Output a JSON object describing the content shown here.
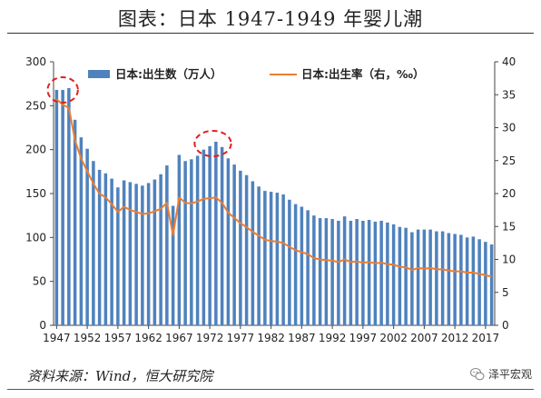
{
  "header": {
    "title": "图表：日本 1947-1949 年婴儿潮"
  },
  "footer": {
    "source": "资料来源：Wind，恒大研究院",
    "brand": "泽平宏观",
    "brand_icon": "chat-bubble-icon"
  },
  "colors": {
    "bar": "#4f82bd",
    "line": "#ed7d31",
    "highlight": "#e02020",
    "axis": "#444444"
  },
  "chart_data": {
    "type": "bar+line",
    "x": [
      1947,
      1948,
      1949,
      1950,
      1951,
      1952,
      1953,
      1954,
      1955,
      1956,
      1957,
      1958,
      1959,
      1960,
      1961,
      1962,
      1963,
      1964,
      1965,
      1966,
      1967,
      1968,
      1969,
      1970,
      1971,
      1972,
      1973,
      1974,
      1975,
      1976,
      1977,
      1978,
      1979,
      1980,
      1981,
      1982,
      1983,
      1984,
      1985,
      1986,
      1987,
      1988,
      1989,
      1990,
      1991,
      1992,
      1993,
      1994,
      1995,
      1996,
      1997,
      1998,
      1999,
      2000,
      2001,
      2002,
      2003,
      2004,
      2005,
      2006,
      2007,
      2008,
      2009,
      2010,
      2011,
      2012,
      2013,
      2014,
      2015,
      2016,
      2017,
      2018
    ],
    "tick_labels": [
      "1947",
      "1952",
      "1957",
      "1962",
      "1967",
      "1972",
      "1977",
      "1982",
      "1987",
      "1992",
      "1997",
      "2002",
      "2007",
      "2012",
      "2017"
    ],
    "series": [
      {
        "name": "日本:出生数（万人）",
        "axis": "left",
        "type": "bar",
        "values": [
          268,
          268,
          270,
          234,
          214,
          201,
          187,
          177,
          173,
          167,
          157,
          165,
          163,
          161,
          159,
          162,
          166,
          172,
          182,
          136,
          194,
          187,
          189,
          193,
          200,
          204,
          209,
          203,
          190,
          183,
          176,
          171,
          164,
          158,
          153,
          152,
          151,
          149,
          143,
          138,
          135,
          131,
          125,
          122,
          122,
          121,
          119,
          124,
          119,
          121,
          119,
          120,
          118,
          119,
          117,
          115,
          112,
          111,
          106,
          109,
          109,
          109,
          107,
          107,
          105,
          104,
          103,
          100,
          101,
          98,
          95,
          92
        ]
      },
      {
        "name": "日本:出生率（右，‰）",
        "axis": "right",
        "type": "line",
        "values": [
          34.3,
          33.5,
          33.0,
          28.1,
          25.3,
          23.4,
          21.5,
          20.0,
          19.4,
          18.4,
          17.2,
          18.0,
          17.5,
          17.2,
          16.9,
          17.0,
          17.3,
          17.7,
          18.6,
          13.7,
          19.4,
          18.6,
          18.5,
          18.8,
          19.2,
          19.3,
          19.4,
          18.6,
          17.1,
          16.3,
          15.5,
          14.9,
          14.2,
          13.6,
          13.0,
          12.8,
          12.7,
          12.5,
          11.9,
          11.4,
          11.1,
          10.8,
          10.2,
          10.0,
          9.9,
          9.8,
          9.6,
          10.0,
          9.6,
          9.7,
          9.5,
          9.6,
          9.4,
          9.5,
          9.3,
          9.2,
          8.9,
          8.8,
          8.4,
          8.7,
          8.6,
          8.7,
          8.5,
          8.5,
          8.3,
          8.2,
          8.2,
          8.0,
          8.0,
          7.8,
          7.6,
          7.4
        ]
      }
    ],
    "ylim_left": [
      0,
      300
    ],
    "yticks_left": [
      0,
      50,
      100,
      150,
      200,
      250,
      300
    ],
    "ylim_right": [
      0,
      40
    ],
    "yticks_right": [
      0,
      5,
      10,
      15,
      20,
      25,
      30,
      35,
      40
    ],
    "xlabel": "",
    "ylabel_left": "",
    "ylabel_right": "",
    "legend_position": "top",
    "highlights": [
      {
        "from": 1947,
        "to": 1949
      },
      {
        "from": 1971,
        "to": 1974
      }
    ],
    "grid": false
  }
}
